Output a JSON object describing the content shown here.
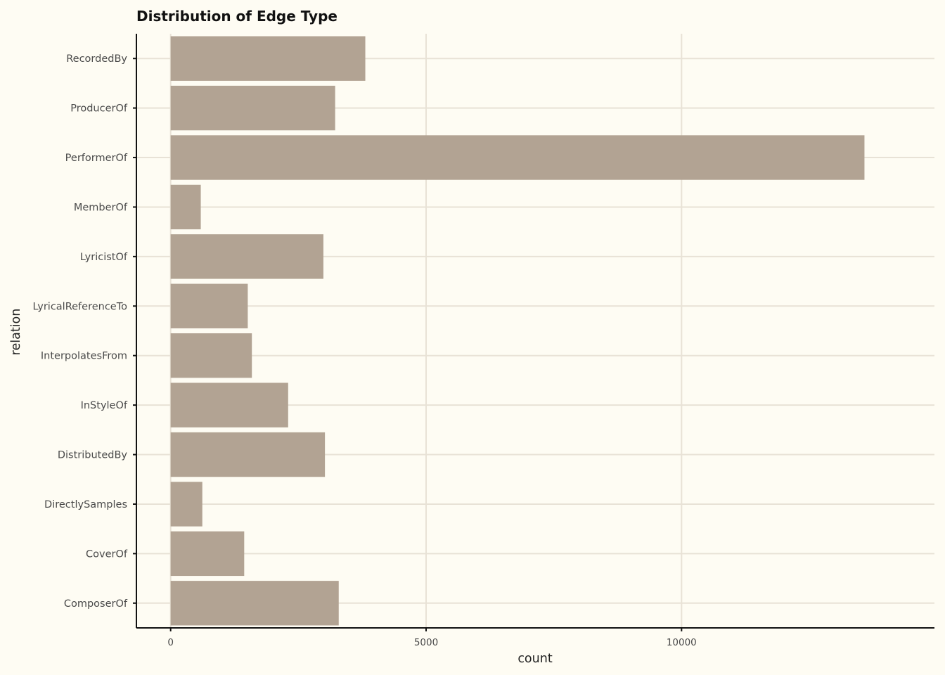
{
  "chart_data": {
    "type": "bar",
    "orientation": "horizontal",
    "title": "Distribution of Edge Type",
    "xlabel": "count",
    "ylabel": "relation",
    "categories": [
      "ComposerOf",
      "CoverOf",
      "DirectlySamples",
      "DistributedBy",
      "InStyleOf",
      "InterpolatesFrom",
      "LyricalReferenceTo",
      "LyricistOf",
      "MemberOf",
      "PerformerOf",
      "ProducerOf",
      "RecordedBy"
    ],
    "values": [
      3290,
      1440,
      620,
      3020,
      2300,
      1590,
      1510,
      2990,
      590,
      13580,
      3220,
      3810
    ],
    "xlim": [
      -670,
      14950
    ],
    "xticks": [
      0,
      5000,
      10000
    ],
    "xtick_labels": [
      "0",
      "5000",
      "10000"
    ],
    "grid": true,
    "colors": {
      "background": "#fefcf3",
      "bar": "#b2a393",
      "grid": "#e8e2d6",
      "axis": "#111111"
    }
  }
}
